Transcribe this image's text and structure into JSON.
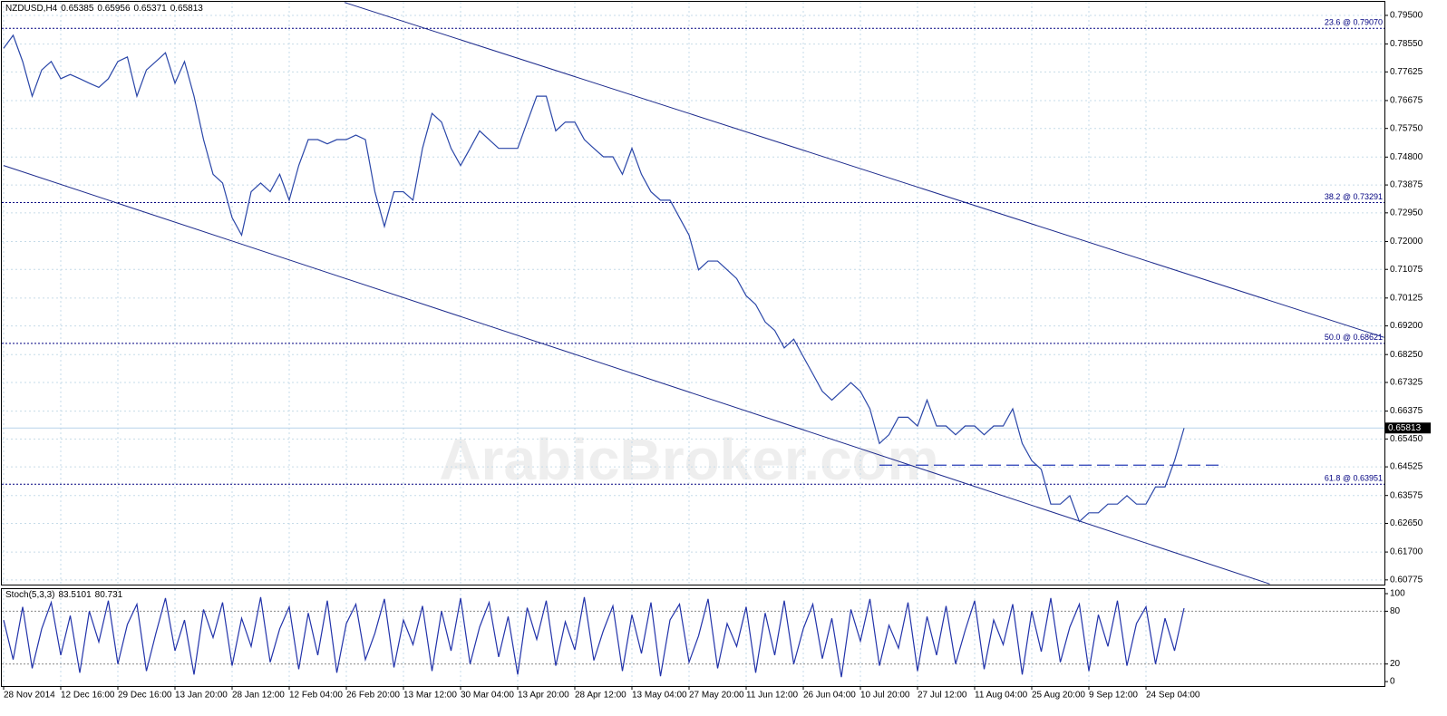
{
  "chart_data": {
    "type": "line",
    "symbol": "NZDUSD,H4",
    "ohlc": [
      0.65385,
      0.65956,
      0.65371,
      0.65813
    ],
    "watermark": "ArabicBroker.com",
    "last_price": 0.65813,
    "color": "#2a46a8",
    "grid": true,
    "categories": [
      "28 Nov 2014",
      null,
      null,
      null,
      null,
      null,
      "12 Dec 16:00",
      null,
      null,
      null,
      null,
      null,
      "29 Dec 16:00",
      null,
      null,
      null,
      null,
      null,
      "13 Jan 20:00",
      null,
      null,
      null,
      null,
      null,
      "28 Jan 12:00",
      null,
      null,
      null,
      null,
      null,
      "12 Feb 04:00",
      null,
      null,
      null,
      null,
      null,
      "26 Feb 20:00",
      null,
      null,
      null,
      null,
      null,
      "13 Mar 12:00",
      null,
      null,
      null,
      null,
      null,
      "30 Mar 04:00",
      null,
      null,
      null,
      null,
      null,
      "13 Apr 20:00",
      null,
      null,
      null,
      null,
      null,
      "28 Apr 12:00",
      null,
      null,
      null,
      null,
      null,
      "13 May 04:00",
      null,
      null,
      null,
      null,
      null,
      "27 May 20:00",
      null,
      null,
      null,
      null,
      null,
      "11 Jun 12:00",
      null,
      null,
      null,
      null,
      null,
      "26 Jun 04:00",
      null,
      null,
      null,
      null,
      null,
      "10 Jul 20:00",
      null,
      null,
      null,
      null,
      null,
      "27 Jul 12:00",
      null,
      null,
      null,
      null,
      null,
      "11 Aug 04:00",
      null,
      null,
      null,
      null,
      null,
      "25 Aug 20:00",
      null,
      null,
      null,
      null,
      null,
      "9 Sep 12:00",
      null,
      null,
      null,
      null,
      null,
      "24 Sep 04:00",
      null,
      null,
      null,
      null
    ],
    "values": [
      0.7841,
      0.7884,
      0.7797,
      0.7682,
      0.7769,
      0.7797,
      0.774,
      0.7754,
      0.774,
      0.7725,
      0.7711,
      0.774,
      0.7797,
      0.7812,
      0.7682,
      0.7769,
      0.7797,
      0.7826,
      0.7725,
      0.7797,
      0.7682,
      0.7538,
      0.7423,
      0.7394,
      0.7279,
      0.7221,
      0.7365,
      0.7394,
      0.7365,
      0.7423,
      0.7337,
      0.7452,
      0.7538,
      0.7538,
      0.7524,
      0.7538,
      0.7538,
      0.7553,
      0.7538,
      0.7365,
      0.725,
      0.7365,
      0.7365,
      0.7337,
      0.7509,
      0.7625,
      0.7596,
      0.7509,
      0.7452,
      0.7509,
      0.7567,
      0.7538,
      0.7509,
      0.7509,
      0.7509,
      0.7596,
      0.7682,
      0.7682,
      0.7567,
      0.7596,
      0.7596,
      0.7538,
      0.7509,
      0.7481,
      0.7481,
      0.7423,
      0.7509,
      0.7423,
      0.7365,
      0.7337,
      0.7337,
      0.7279,
      0.7221,
      0.7106,
      0.7135,
      0.7135,
      0.7106,
      0.7077,
      0.702,
      0.6991,
      0.6933,
      0.6905,
      0.6847,
      0.6876,
      0.6818,
      0.6761,
      0.6703,
      0.6674,
      0.6703,
      0.6732,
      0.6703,
      0.6645,
      0.653,
      0.6559,
      0.6617,
      0.6617,
      0.6588,
      0.6674,
      0.6588,
      0.6588,
      0.6559,
      0.6588,
      0.6588,
      0.6559,
      0.6588,
      0.6588,
      0.6645,
      0.653,
      0.6473,
      0.6444,
      0.6329,
      0.6329,
      0.6357,
      0.6271,
      0.63,
      0.63,
      0.6329,
      0.6329,
      0.6357,
      0.6329,
      0.6329,
      0.6386,
      0.6386,
      0.6473,
      0.6581
    ],
    "ylim": [
      0.6062,
      0.7995
    ],
    "yticks": [
      {
        "value": 0.795,
        "label": "0.79500"
      },
      {
        "value": 0.7855,
        "label": "0.78550"
      },
      {
        "value": 0.77625,
        "label": "0.77625"
      },
      {
        "value": 0.76675,
        "label": "0.76675"
      },
      {
        "value": 0.7575,
        "label": "0.75750"
      },
      {
        "value": 0.748,
        "label": "0.74800"
      },
      {
        "value": 0.73875,
        "label": "0.73875"
      },
      {
        "value": 0.7295,
        "label": "0.72950"
      },
      {
        "value": 0.72,
        "label": "0.72000"
      },
      {
        "value": 0.71075,
        "label": "0.71075"
      },
      {
        "value": 0.70125,
        "label": "0.70125"
      },
      {
        "value": 0.692,
        "label": "0.69200"
      },
      {
        "value": 0.6825,
        "label": "0.68250"
      },
      {
        "value": 0.67325,
        "label": "0.67325"
      },
      {
        "value": 0.66375,
        "label": "0.66375"
      },
      {
        "value": 0.6545,
        "label": "0.65450"
      },
      {
        "value": 0.64525,
        "label": "0.64525"
      },
      {
        "value": 0.63575,
        "label": "0.63575"
      },
      {
        "value": 0.6265,
        "label": "0.62650"
      },
      {
        "value": 0.617,
        "label": "0.61700"
      },
      {
        "value": 0.60775,
        "label": "0.60775"
      }
    ],
    "fib_levels": [
      {
        "value": 0.7907,
        "label": "23.6 @ 0.79070"
      },
      {
        "value": 0.73291,
        "label": "38.2 @ 0.73291"
      },
      {
        "value": 0.68621,
        "label": "50.0 @ 0.68621"
      },
      {
        "value": 0.63951,
        "label": "61.8 @ 0.63951"
      }
    ],
    "trendlines": [
      {
        "x": [
          35.8,
          145
        ],
        "y": [
          0.7993,
          0.6882
        ],
        "color": "#1c2a8c",
        "style": "solid"
      },
      {
        "x": [
          0,
          133
        ],
        "y": [
          0.7452,
          0.6064
        ],
        "color": "#1c2a8c",
        "style": "solid"
      },
      {
        "x": [
          92,
          128.2
        ],
        "y": [
          0.6458,
          0.6458
        ],
        "color": "#2a3fb8",
        "style": "dashed"
      }
    ],
    "stoch": {
      "title": "Stoch(5,3,3)",
      "readings": [
        83.5101,
        80.731
      ],
      "color": "#2233aa",
      "ylim": [
        0,
        100
      ],
      "yticks": [
        0,
        20,
        80,
        100
      ],
      "levels": [
        20,
        80
      ],
      "values": [
        70,
        25,
        85,
        15,
        60,
        90,
        30,
        75,
        10,
        80,
        45,
        92,
        20,
        65,
        88,
        12,
        55,
        95,
        35,
        70,
        8,
        82,
        50,
        90,
        18,
        72,
        40,
        96,
        22,
        60,
        85,
        14,
        78,
        30,
        92,
        10,
        66,
        88,
        25,
        55,
        94,
        16,
        70,
        42,
        86,
        12,
        80,
        35,
        95,
        20,
        62,
        90,
        28,
        74,
        8,
        84,
        48,
        92,
        18,
        68,
        36,
        96,
        24,
        58,
        86,
        12,
        76,
        32,
        90,
        6,
        70,
        88,
        22,
        52,
        94,
        15,
        66,
        40,
        85,
        10,
        78,
        30,
        92,
        20,
        60,
        88,
        26,
        72,
        5,
        82,
        46,
        94,
        18,
        64,
        38,
        90,
        12,
        74,
        30,
        86,
        20,
        58,
        92,
        14,
        70,
        42,
        88,
        8,
        80,
        34,
        95,
        22,
        62,
        88,
        12,
        76,
        40,
        92,
        18,
        66,
        85,
        20,
        72,
        35,
        83.5101
      ]
    }
  }
}
